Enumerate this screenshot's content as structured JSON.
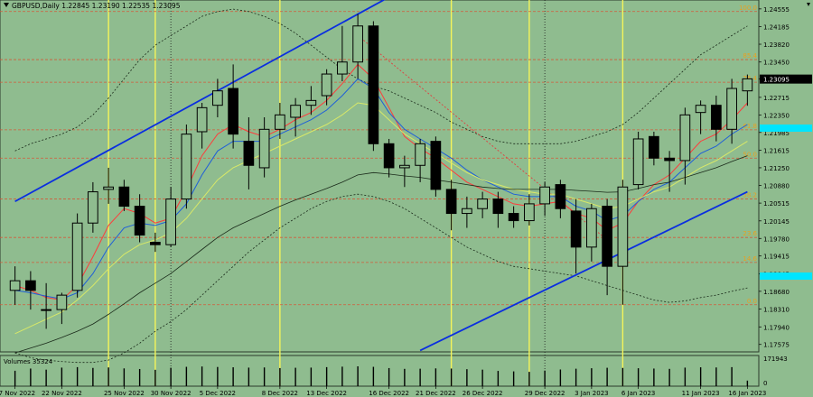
{
  "chart_data": {
    "type": "candlestick",
    "header": {
      "text": "GBPUSD,Daily  1.22845 1.23190 1.22535 1.23095"
    },
    "price_labels": [
      "1.24555",
      "1.24185",
      "1.23820",
      "1.23450",
      "1.23095",
      "1.22715",
      "1.22350",
      "1.21985",
      "1.21615",
      "1.21250",
      "1.20880",
      "1.20515",
      "1.20145",
      "1.19780",
      "1.19415",
      "1.19045",
      "1.18680",
      "1.18310",
      "1.17940",
      "1.17575"
    ],
    "current_price": "1.23095",
    "current_price_value": 1.23095,
    "ylim": [
      1.1742,
      1.2474
    ],
    "date_labels": [
      "17 Nov 2022",
      "22 Nov 2022",
      "25 Nov 2022",
      "30 Nov 2022",
      "5 Dec 2022",
      "8 Dec 2022",
      "13 Dec 2022",
      "16 Dec 2022",
      "21 Dec 2022",
      "26 Dec 2022",
      "29 Dec 2022",
      "3 Jan 2023",
      "6 Jan 2023",
      "11 Jan 2023",
      "16 Jan 2023"
    ],
    "fib_levels": [
      {
        "label": "100.0",
        "price": 1.245
      },
      {
        "label": "85.4",
        "price": 1.235
      },
      {
        "label": "76.4",
        "price": 1.2303
      },
      {
        "label": "61.8",
        "price": 1.2204
      },
      {
        "label": "50.0",
        "price": 1.2145
      },
      {
        "label": "38.2",
        "price": 1.206
      },
      {
        "label": "23.6",
        "price": 1.198
      },
      {
        "label": "14.6",
        "price": 1.1928
      },
      {
        "label": "0.0",
        "price": 1.184
      }
    ],
    "volume_label": "Volumes 35324",
    "volume_axis": [
      "171943",
      "0"
    ],
    "volume_max": 171943,
    "candles": [
      {
        "o": 1.187,
        "h": 1.192,
        "l": 1.184,
        "c": 1.189
      },
      {
        "o": 1.189,
        "h": 1.191,
        "l": 1.183,
        "c": 1.187
      },
      {
        "o": 1.183,
        "h": 1.1885,
        "l": 1.179,
        "c": 1.183
      },
      {
        "o": 1.183,
        "h": 1.1865,
        "l": 1.18,
        "c": 1.186
      },
      {
        "o": 1.187,
        "h": 1.203,
        "l": 1.1855,
        "c": 1.201
      },
      {
        "o": 1.201,
        "h": 1.2095,
        "l": 1.199,
        "c": 1.2075
      },
      {
        "o": 1.208,
        "h": 1.2125,
        "l": 1.205,
        "c": 1.2085
      },
      {
        "o": 1.2085,
        "h": 1.21,
        "l": 1.2035,
        "c": 1.2045
      },
      {
        "o": 1.2045,
        "h": 1.207,
        "l": 1.197,
        "c": 1.1985
      },
      {
        "o": 1.197,
        "h": 1.199,
        "l": 1.195,
        "c": 1.1965
      },
      {
        "o": 1.1965,
        "h": 1.2085,
        "l": 1.196,
        "c": 1.206
      },
      {
        "o": 1.206,
        "h": 1.2215,
        "l": 1.204,
        "c": 1.2195
      },
      {
        "o": 1.22,
        "h": 1.226,
        "l": 1.2165,
        "c": 1.225
      },
      {
        "o": 1.2255,
        "h": 1.231,
        "l": 1.223,
        "c": 1.2285
      },
      {
        "o": 1.229,
        "h": 1.234,
        "l": 1.2165,
        "c": 1.2195
      },
      {
        "o": 1.218,
        "h": 1.223,
        "l": 1.208,
        "c": 1.213
      },
      {
        "o": 1.2125,
        "h": 1.223,
        "l": 1.2105,
        "c": 1.2205
      },
      {
        "o": 1.2205,
        "h": 1.226,
        "l": 1.2185,
        "c": 1.2235
      },
      {
        "o": 1.223,
        "h": 1.227,
        "l": 1.219,
        "c": 1.2255
      },
      {
        "o": 1.2255,
        "h": 1.2295,
        "l": 1.2235,
        "c": 1.2265
      },
      {
        "o": 1.2275,
        "h": 1.233,
        "l": 1.2255,
        "c": 1.232
      },
      {
        "o": 1.232,
        "h": 1.242,
        "l": 1.2305,
        "c": 1.2345
      },
      {
        "o": 1.2345,
        "h": 1.2445,
        "l": 1.231,
        "c": 1.242
      },
      {
        "o": 1.242,
        "h": 1.243,
        "l": 1.216,
        "c": 1.2175
      },
      {
        "o": 1.2175,
        "h": 1.2185,
        "l": 1.2105,
        "c": 1.2125
      },
      {
        "o": 1.2125,
        "h": 1.215,
        "l": 1.2085,
        "c": 1.213
      },
      {
        "o": 1.213,
        "h": 1.2185,
        "l": 1.2095,
        "c": 1.2175
      },
      {
        "o": 1.218,
        "h": 1.219,
        "l": 1.2065,
        "c": 1.208
      },
      {
        "o": 1.208,
        "h": 1.21,
        "l": 1.1995,
        "c": 1.203
      },
      {
        "o": 1.203,
        "h": 1.2065,
        "l": 1.2,
        "c": 1.204
      },
      {
        "o": 1.204,
        "h": 1.2075,
        "l": 1.202,
        "c": 1.206
      },
      {
        "o": 1.206,
        "h": 1.2075,
        "l": 1.2,
        "c": 1.203
      },
      {
        "o": 1.203,
        "h": 1.2045,
        "l": 1.2,
        "c": 1.2015
      },
      {
        "o": 1.2015,
        "h": 1.207,
        "l": 1.2005,
        "c": 1.205
      },
      {
        "o": 1.205,
        "h": 1.2095,
        "l": 1.2025,
        "c": 1.2085
      },
      {
        "o": 1.209,
        "h": 1.21,
        "l": 1.202,
        "c": 1.204
      },
      {
        "o": 1.2035,
        "h": 1.206,
        "l": 1.1905,
        "c": 1.196
      },
      {
        "o": 1.196,
        "h": 1.205,
        "l": 1.193,
        "c": 1.204
      },
      {
        "o": 1.2045,
        "h": 1.206,
        "l": 1.186,
        "c": 1.192
      },
      {
        "o": 1.192,
        "h": 1.21,
        "l": 1.184,
        "c": 1.2085
      },
      {
        "o": 1.209,
        "h": 1.22,
        "l": 1.208,
        "c": 1.2185
      },
      {
        "o": 1.219,
        "h": 1.22,
        "l": 1.213,
        "c": 1.2145
      },
      {
        "o": 1.2145,
        "h": 1.216,
        "l": 1.2075,
        "c": 1.214
      },
      {
        "o": 1.214,
        "h": 1.225,
        "l": 1.209,
        "c": 1.2235
      },
      {
        "o": 1.224,
        "h": 1.2265,
        "l": 1.2195,
        "c": 1.2255
      },
      {
        "o": 1.2255,
        "h": 1.2275,
        "l": 1.218,
        "c": 1.2205
      },
      {
        "o": 1.2205,
        "h": 1.231,
        "l": 1.2175,
        "c": 1.229
      },
      {
        "o": 1.2285,
        "h": 1.2319,
        "l": 1.2254,
        "c": 1.231
      }
    ],
    "volumes": [
      98000,
      112000,
      105000,
      118000,
      121000,
      116000,
      119000,
      113000,
      109000,
      104000,
      117000,
      123000,
      125000,
      122000,
      120000,
      118000,
      119000,
      115000,
      117000,
      118000,
      121000,
      124000,
      126000,
      123000,
      115000,
      110000,
      111000,
      113000,
      112000,
      108000,
      105000,
      97000,
      94000,
      91000,
      99000,
      106000,
      111000,
      114000,
      117000,
      116000,
      114000,
      112000,
      110000,
      118000,
      120000,
      119000,
      121000,
      35324
    ],
    "sma": [
      {
        "color": "#ff3b3b",
        "width": 1,
        "values": [
          1.188,
          1.187,
          1.1855,
          1.185,
          1.188,
          1.194,
          1.2005,
          1.204,
          1.203,
          1.201,
          1.202,
          1.208,
          1.215,
          1.2195,
          1.2215,
          1.22,
          1.219,
          1.2205,
          1.2225,
          1.224,
          1.2265,
          1.23,
          1.234,
          1.231,
          1.225,
          1.219,
          1.2165,
          1.2145,
          1.212,
          1.2095,
          1.208,
          1.2065,
          1.205,
          1.2045,
          1.205,
          1.2055,
          1.203,
          1.202,
          1.1995,
          1.201,
          1.2055,
          1.209,
          1.211,
          1.2145,
          1.218,
          1.2195,
          1.2225,
          1.226
        ]
      },
      {
        "color": "#1f5fd8",
        "width": 1,
        "values": [
          1.187,
          1.1865,
          1.1858,
          1.1852,
          1.1865,
          1.1905,
          1.196,
          1.2,
          1.201,
          1.2005,
          1.2015,
          1.205,
          1.211,
          1.216,
          1.218,
          1.218,
          1.218,
          1.2195,
          1.221,
          1.2225,
          1.2245,
          1.2275,
          1.231,
          1.229,
          1.224,
          1.2205,
          1.2185,
          1.2165,
          1.2145,
          1.212,
          1.21,
          1.2085,
          1.207,
          1.2065,
          1.2065,
          1.2065,
          1.2045,
          1.2035,
          1.2015,
          1.2025,
          1.2055,
          1.208,
          1.2095,
          1.2125,
          1.2155,
          1.217,
          1.2195,
          1.2215
        ]
      },
      {
        "color": "#d8e868",
        "width": 1,
        "values": [
          1.178,
          1.1795,
          1.181,
          1.1825,
          1.185,
          1.188,
          1.1915,
          1.1945,
          1.1965,
          1.1975,
          1.199,
          1.202,
          1.206,
          1.21,
          1.2125,
          1.214,
          1.2155,
          1.217,
          1.2185,
          1.22,
          1.2215,
          1.2235,
          1.226,
          1.2255,
          1.2225,
          1.2195,
          1.2175,
          1.2155,
          1.2135,
          1.2115,
          1.21,
          1.209,
          1.208,
          1.2075,
          1.207,
          1.207,
          1.206,
          1.205,
          1.204,
          1.2045,
          1.206,
          1.2075,
          1.2085,
          1.2105,
          1.2125,
          1.214,
          1.216,
          1.218
        ]
      },
      {
        "color": "#1a2a1a",
        "width": 0.8,
        "values": [
          1.174,
          1.175,
          1.176,
          1.1772,
          1.1785,
          1.18,
          1.182,
          1.1842,
          1.1865,
          1.1885,
          1.1905,
          1.193,
          1.1955,
          1.198,
          1.2,
          1.2015,
          1.203,
          1.2045,
          1.2058,
          1.207,
          1.2082,
          1.2095,
          1.211,
          1.2115,
          1.2112,
          1.2108,
          1.2105,
          1.21,
          1.2095,
          1.209,
          1.2085,
          1.2082,
          1.208,
          1.208,
          1.208,
          1.208,
          1.2078,
          1.2076,
          1.2074,
          1.2075,
          1.2082,
          1.209,
          1.2095,
          1.2105,
          1.2115,
          1.2125,
          1.2138,
          1.215
        ]
      }
    ],
    "bollinger": {
      "color": "#1a2a1a",
      "upper": [
        1.216,
        1.2175,
        1.2185,
        1.2195,
        1.221,
        1.2235,
        1.227,
        1.231,
        1.235,
        1.238,
        1.24,
        1.242,
        1.244,
        1.245,
        1.2455,
        1.245,
        1.244,
        1.2425,
        1.2405,
        1.238,
        1.2355,
        1.233,
        1.231,
        1.2295,
        1.2285,
        1.227,
        1.2255,
        1.224,
        1.222,
        1.2205,
        1.219,
        1.218,
        1.2175,
        1.2175,
        1.2175,
        1.2175,
        1.218,
        1.219,
        1.22,
        1.2215,
        1.224,
        1.227,
        1.23,
        1.233,
        1.236,
        1.238,
        1.24,
        1.242
      ],
      "lower": [
        1.174,
        1.173,
        1.1725,
        1.1722,
        1.172,
        1.172,
        1.1725,
        1.174,
        1.176,
        1.1785,
        1.1805,
        1.183,
        1.186,
        1.189,
        1.192,
        1.195,
        1.1975,
        1.2,
        1.202,
        1.204,
        1.2055,
        1.2065,
        1.207,
        1.2065,
        1.2055,
        1.204,
        1.202,
        1.2,
        1.198,
        1.196,
        1.1945,
        1.193,
        1.192,
        1.1915,
        1.191,
        1.1905,
        1.19,
        1.189,
        1.188,
        1.187,
        1.186,
        1.185,
        1.1845,
        1.1848,
        1.1855,
        1.186,
        1.1868,
        1.1875
      ]
    },
    "trendlines": [
      {
        "color": "#0a2ee0",
        "from": [
          0,
          1.2055
        ],
        "to": [
          24,
          1.248
        ]
      },
      {
        "color": "#0a2ee0",
        "from": [
          26,
          1.1745
        ],
        "to": [
          47,
          1.2075
        ]
      }
    ],
    "dotted_trend": {
      "color": "#e04040",
      "from": [
        22,
        1.24
      ],
      "to": [
        38,
        1.1975
      ]
    },
    "vlines_yellow": [
      6,
      9,
      17,
      28,
      33,
      39
    ],
    "vlines_dotted": [
      10,
      34
    ]
  }
}
